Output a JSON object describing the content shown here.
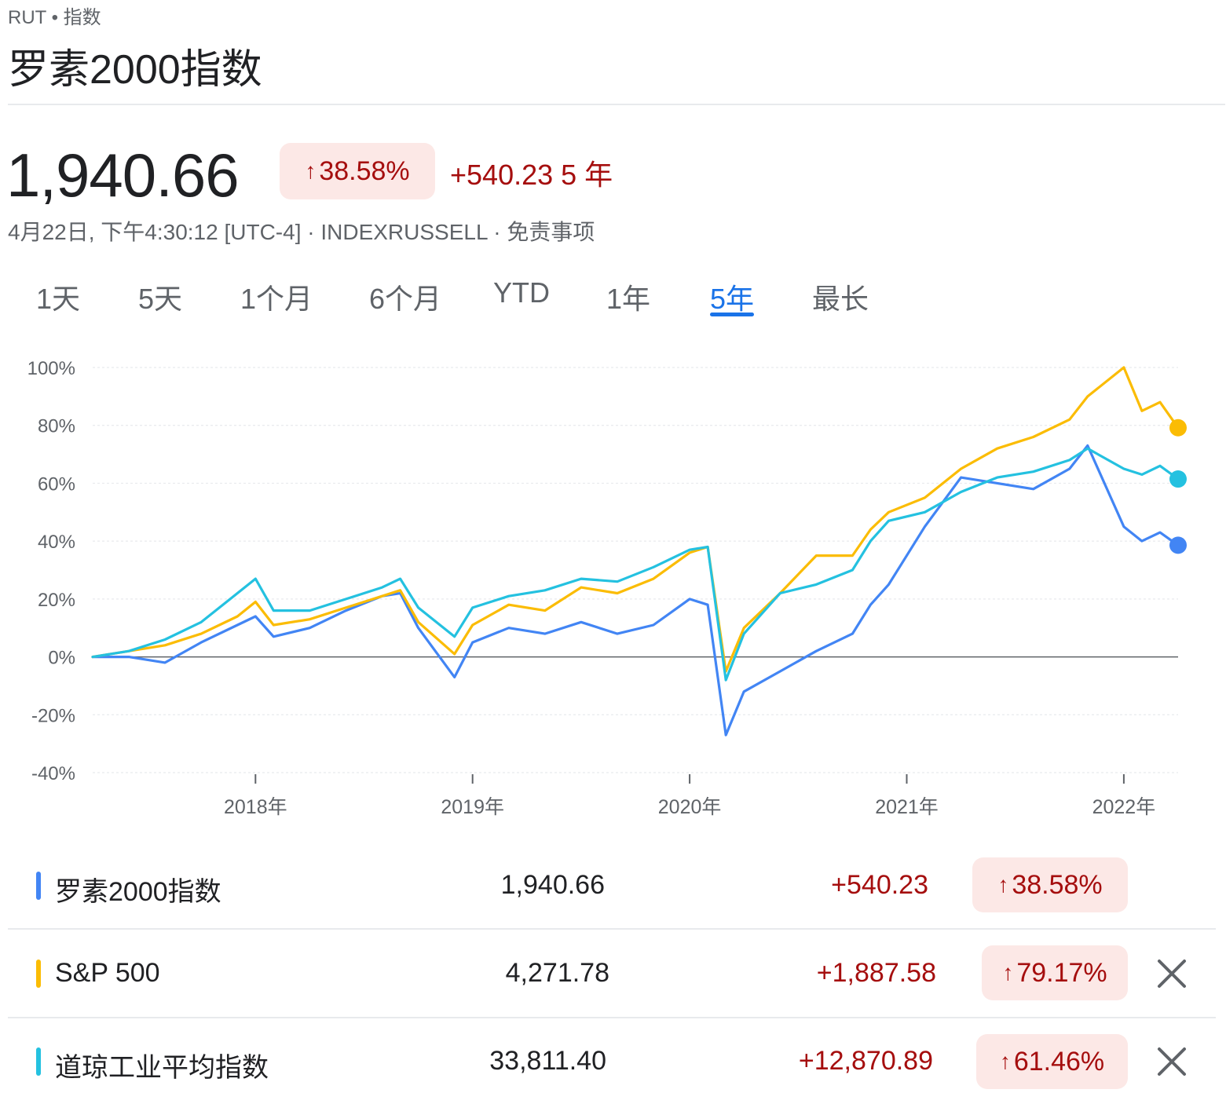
{
  "header": {
    "ticker": "RUT",
    "category": "指数",
    "title": "罗素2000指数"
  },
  "quote": {
    "price": "1,940.66",
    "percent_change": "38.58%",
    "absolute_change": "+540.23",
    "period_label": "5 年",
    "meta": "4月22日, 下午4:30:12 [UTC-4] · INDEXRUSSELL · 免责事项"
  },
  "tabs": [
    {
      "label": "1天",
      "active": false
    },
    {
      "label": "5天",
      "active": false
    },
    {
      "label": "1个月",
      "active": false
    },
    {
      "label": "6个月",
      "active": false
    },
    {
      "label": "YTD",
      "active": false
    },
    {
      "label": "1年",
      "active": false
    },
    {
      "label": "5年",
      "active": true
    },
    {
      "label": "最长",
      "active": false
    }
  ],
  "colors": {
    "rut": "#4285f4",
    "sp500": "#fbbc04",
    "dow": "#24c1e0",
    "positive": "#a50e0e",
    "positive_bg": "#fce8e6",
    "active_tab": "#1a73e8"
  },
  "chart_data": {
    "type": "line",
    "y_unit": "%",
    "ylim": [
      -40,
      100
    ],
    "yticks": [
      "100%",
      "80%",
      "60%",
      "40%",
      "20%",
      "0%",
      "-20%",
      "-40%"
    ],
    "xticks": [
      "2018年",
      "2019年",
      "2020年",
      "2021年",
      "2022年"
    ],
    "grid": true,
    "x": [
      "2017-04",
      "2017-06",
      "2017-08",
      "2017-10",
      "2017-12",
      "2018-01",
      "2018-02",
      "2018-04",
      "2018-06",
      "2018-08",
      "2018-09",
      "2018-10",
      "2018-12",
      "2019-01",
      "2019-03",
      "2019-05",
      "2019-07",
      "2019-09",
      "2019-11",
      "2020-01",
      "2020-02",
      "2020-03",
      "2020-04",
      "2020-06",
      "2020-08",
      "2020-10",
      "2020-11",
      "2020-12",
      "2021-02",
      "2021-04",
      "2021-06",
      "2021-08",
      "2021-10",
      "2021-11",
      "2022-01",
      "2022-02",
      "2022-03",
      "2022-04"
    ],
    "series": [
      {
        "name": "罗素2000指数",
        "color": "#4285f4",
        "values": [
          0,
          0,
          -2,
          5,
          11,
          14,
          7,
          10,
          16,
          21,
          22,
          10,
          -7,
          5,
          10,
          8,
          12,
          8,
          11,
          20,
          18,
          -27,
          -12,
          -5,
          2,
          8,
          18,
          25,
          45,
          62,
          60,
          58,
          65,
          73,
          45,
          40,
          43,
          38.58
        ]
      },
      {
        "name": "S&P 500",
        "color": "#fbbc04",
        "values": [
          0,
          2,
          4,
          8,
          14,
          19,
          11,
          13,
          17,
          21,
          23,
          12,
          1,
          11,
          18,
          16,
          24,
          22,
          27,
          36,
          38,
          -5,
          10,
          22,
          35,
          35,
          44,
          50,
          55,
          65,
          72,
          76,
          82,
          90,
          100,
          85,
          88,
          79.17
        ]
      },
      {
        "name": "道琼工业平均指数",
        "color": "#24c1e0",
        "values": [
          0,
          2,
          6,
          12,
          22,
          27,
          16,
          16,
          20,
          24,
          27,
          17,
          7,
          17,
          21,
          23,
          27,
          26,
          31,
          37,
          38,
          -8,
          8,
          22,
          25,
          30,
          40,
          47,
          50,
          57,
          62,
          64,
          68,
          72,
          65,
          63,
          66,
          61.46
        ]
      }
    ]
  },
  "comparison": [
    {
      "name": "罗素2000指数",
      "value": "1,940.66",
      "change": "+540.23",
      "percent": "38.58%",
      "removable": false
    },
    {
      "name": "S&P  500",
      "value": "4,271.78",
      "change": "+1,887.58",
      "percent": "79.17%",
      "removable": true
    },
    {
      "name": "道琼工业平均指数",
      "value": "33,811.40",
      "change": "+12,870.89",
      "percent": "61.46%",
      "removable": true
    }
  ]
}
